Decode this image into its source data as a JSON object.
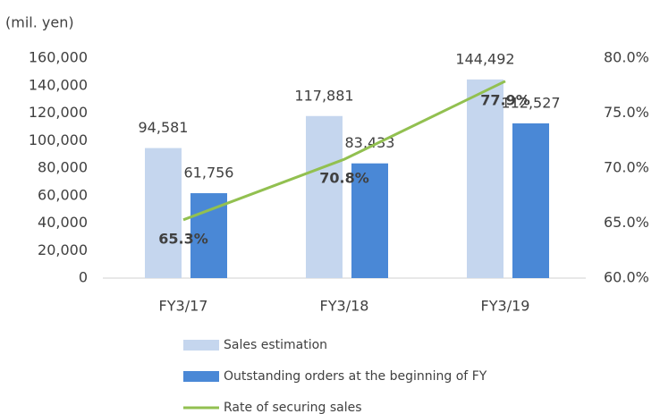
{
  "chart_data": {
    "type": "bar-line",
    "y_label": "(mil. yen)",
    "categories": [
      "FY3/17",
      "FY3/18",
      "FY3/19"
    ],
    "series": [
      {
        "name": "Sales estimation",
        "color": "#c5d6ee",
        "type": "bar",
        "values": [
          94581,
          117881,
          144492
        ],
        "value_labels": [
          "94,581",
          "117,881",
          "144,492"
        ]
      },
      {
        "name": "Outstanding orders at the beginning of FY",
        "color": "#4a88d6",
        "type": "bar",
        "values": [
          61756,
          83433,
          112527
        ],
        "value_labels": [
          "61,756",
          "83,433",
          "112,527"
        ]
      },
      {
        "name": "Rate of securing sales",
        "color": "#92c050",
        "type": "line",
        "axis": "y2",
        "values": [
          65.3,
          70.8,
          77.9
        ],
        "value_labels": [
          "65.3%",
          "70.8%",
          "77.9%"
        ]
      }
    ],
    "ylim": [
      0,
      160000
    ],
    "yticks": [
      0,
      {
        "value": 20000,
        "label": "20,000"
      },
      {
        "value": 40000,
        "label": "40,000"
      },
      {
        "value": 60000,
        "label": "60,000"
      },
      {
        "value": 80000,
        "label": "80,000"
      },
      {
        "value": 100000,
        "label": "100,000"
      },
      {
        "value": 120000,
        "label": "120,000"
      },
      {
        "value": 140000,
        "label": "140,000"
      },
      {
        "value": 160000,
        "label": "160,000"
      }
    ],
    "y2lim": [
      60,
      80
    ],
    "y2ticks": [
      {
        "value": 60,
        "label": "60.0%"
      },
      {
        "value": 65,
        "label": "65.0%"
      },
      {
        "value": 70,
        "label": "70.0%"
      },
      {
        "value": 75,
        "label": "75.0%"
      },
      {
        "value": 80,
        "label": "80.0%"
      }
    ]
  }
}
